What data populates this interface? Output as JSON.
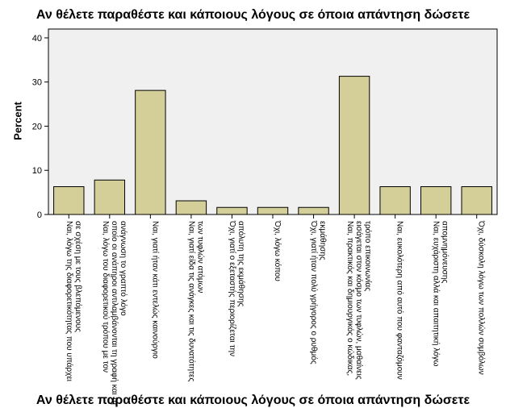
{
  "chart_data": {
    "type": "bar",
    "title": "Αν θέλετε παραθέστε και κάποιους λόγους σε όποια απάντηση δώσετε",
    "xlabel": "",
    "ylabel": "Percent",
    "ylim": [
      0,
      42
    ],
    "yticks": [
      0,
      10,
      20,
      30,
      40
    ],
    "grid": false,
    "colors": {
      "bar": "#d4cf98",
      "plot_bg": "#f0f0f0",
      "stroke": "#000000"
    },
    "categories": [
      [
        "Ναι, λόγω της διαφορετικότητας που υπάρχει",
        "σε σχέση με τους βλεπόμενους"
      ],
      [
        "Ναι, λόγω του διαφορετικού τρόπου με τον",
        "οποίο οι ανάπηροι αντιλαμβάνονται τη γραφή και την",
        "ανάγνωση το γραπτό λόγο"
      ],
      [
        "Ναι, γιατί ήταν κάτι εντελώς καινούργιο"
      ],
      [
        "Ναι, γιατί είδα τις ανάγκες και τις δυνατότητες",
        "των τυφλών ατόμων"
      ],
      [
        "Όχι, γιατί ο εξεταστής περιορίζεται την",
        "απόλυτη της εκμάθησης"
      ],
      [
        "Όχι, λόγω κόπου"
      ],
      [
        "Όχι, γιατί ήταν πολύ γρήγορος ο ρυθμός",
        "εκμάθησης"
      ],
      [
        "Ναι, πρακτικός και δημιουργικός ο κώδικας,",
        "εισάγεται στον κόσμο των τυφλών, μαθαίνεις",
        "τρόπο επικοινωνίας"
      ],
      [
        "Ναι, ευκολότερη από αυτό που φανταζόμουν"
      ],
      [
        "Ναι, ευχάριστη αλλά και απαιτητική λόγω",
        "απομνημόνευσης"
      ],
      [
        "Όχι, δύσκολη λόγω των πολλών συμβόλων"
      ]
    ],
    "values": [
      6.3,
      7.8,
      28.1,
      3.1,
      1.6,
      1.6,
      1.6,
      31.3,
      6.3,
      6.3,
      6.3
    ]
  },
  "bottom_caption": "Αν θέλετε παραθέστε και κάποιους λόγους σε όποια απάντηση δώσετε"
}
